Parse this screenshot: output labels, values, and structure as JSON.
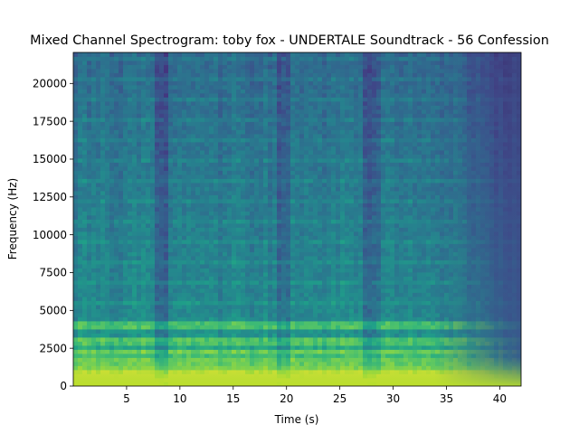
{
  "chart_data": {
    "type": "heatmap",
    "title": "Mixed Channel Spectrogram: toby fox - UNDERTALE Soundtrack - 56 Confession",
    "xlabel": "Time (s)",
    "ylabel": "Frequency (Hz)",
    "xlim": [
      0,
      42
    ],
    "ylim": [
      0,
      22050
    ],
    "x_ticks": [
      5,
      10,
      15,
      20,
      25,
      30,
      35,
      40
    ],
    "y_ticks": [
      0,
      2500,
      5000,
      7500,
      10000,
      12500,
      15000,
      17500,
      20000
    ],
    "colormap": "viridis",
    "grid": false,
    "legend": "none",
    "notes_bright_bands_hz": [
      150,
      350,
      600,
      900,
      1300,
      1800,
      2300,
      3000,
      4000
    ],
    "quiet_segments_s": [
      [
        7.5,
        9.0
      ],
      [
        19.0,
        20.5
      ],
      [
        27.0,
        29.0
      ]
    ],
    "energy_rolloff_start_s": 36
  }
}
